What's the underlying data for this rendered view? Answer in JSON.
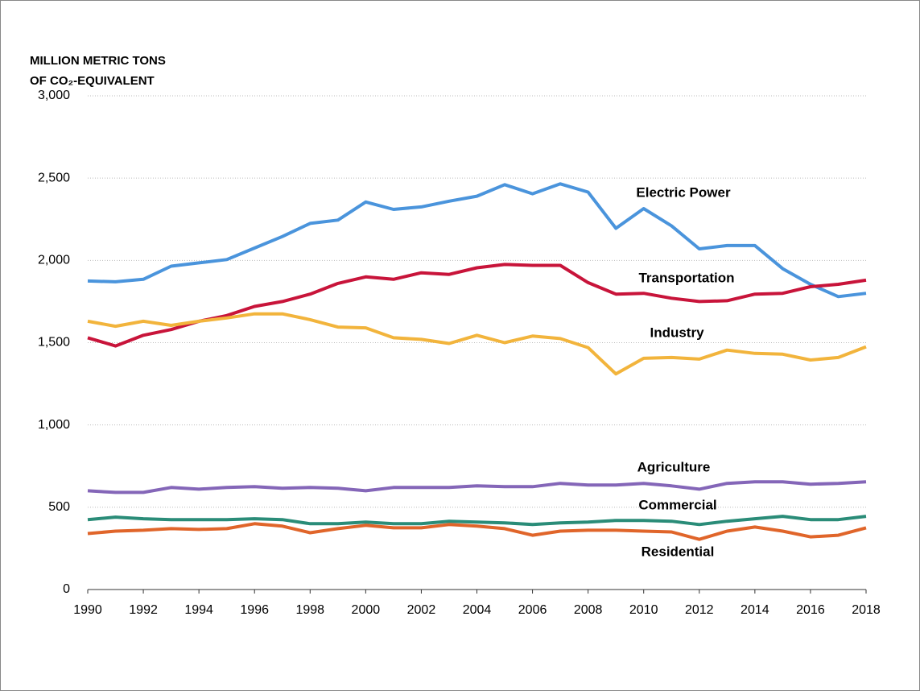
{
  "chart_data": {
    "type": "line",
    "y_label": [
      "MILLION METRIC TONS",
      "OF CO₂-EQUIVALENT"
    ],
    "x": [
      1990,
      1991,
      1992,
      1993,
      1994,
      1995,
      1996,
      1997,
      1998,
      1999,
      2000,
      2001,
      2002,
      2003,
      2004,
      2005,
      2006,
      2007,
      2008,
      2009,
      2010,
      2011,
      2012,
      2013,
      2014,
      2015,
      2016,
      2017,
      2018
    ],
    "xlim": [
      1990,
      2018
    ],
    "xticks": [
      1990,
      1992,
      1994,
      1996,
      1998,
      2000,
      2002,
      2004,
      2006,
      2008,
      2010,
      2012,
      2014,
      2016,
      2018
    ],
    "ylim": [
      0,
      3000
    ],
    "yticks": [
      0,
      500,
      {
        "value": 1000,
        "label": "1,000"
      },
      {
        "value": 1500,
        "label": "1,500"
      },
      {
        "value": 2000,
        "label": "2,000"
      },
      {
        "value": 2500,
        "label": "2,500"
      },
      {
        "value": 3000,
        "label": "3,000"
      }
    ],
    "grid": true,
    "series": [
      {
        "name": "Electric Power",
        "color": "#4a94dc",
        "values": [
          1875,
          1870,
          1885,
          1965,
          1985,
          2005,
          2075,
          2145,
          2225,
          2245,
          2355,
          2310,
          2325,
          2360,
          2390,
          2460,
          2405,
          2465,
          2415,
          2195,
          2315,
          2210,
          2070,
          2090,
          2090,
          1950,
          1855,
          1780,
          1800
        ]
      },
      {
        "name": "Transportation",
        "color": "#c8143a",
        "values": [
          1530,
          1480,
          1545,
          1580,
          1630,
          1665,
          1720,
          1750,
          1795,
          1860,
          1900,
          1885,
          1925,
          1915,
          1955,
          1975,
          1970,
          1970,
          1865,
          1795,
          1800,
          1770,
          1750,
          1755,
          1795,
          1800,
          1840,
          1855,
          1880
        ]
      },
      {
        "name": "Industry",
        "color": "#f2b43c",
        "values": [
          1630,
          1600,
          1630,
          1605,
          1630,
          1650,
          1675,
          1675,
          1640,
          1595,
          1590,
          1530,
          1520,
          1495,
          1545,
          1500,
          1540,
          1525,
          1470,
          1310,
          1405,
          1410,
          1400,
          1455,
          1435,
          1430,
          1395,
          1410,
          1475
        ]
      },
      {
        "name": "Agriculture",
        "color": "#8466b8",
        "values": [
          600,
          590,
          590,
          620,
          610,
          620,
          625,
          615,
          620,
          615,
          600,
          620,
          620,
          620,
          630,
          625,
          625,
          645,
          635,
          635,
          645,
          630,
          610,
          645,
          655,
          655,
          640,
          645,
          655
        ]
      },
      {
        "name": "Commercial",
        "color": "#2a8c78",
        "values": [
          425,
          440,
          430,
          425,
          425,
          425,
          430,
          425,
          400,
          400,
          410,
          400,
          400,
          415,
          410,
          405,
          395,
          405,
          410,
          420,
          420,
          415,
          395,
          415,
          430,
          445,
          425,
          425,
          445
        ]
      },
      {
        "name": "Residential",
        "color": "#e0652a",
        "values": [
          340,
          355,
          360,
          370,
          365,
          370,
          400,
          385,
          345,
          370,
          390,
          375,
          375,
          395,
          385,
          370,
          330,
          355,
          360,
          360,
          355,
          350,
          305,
          355,
          380,
          355,
          320,
          330,
          375
        ]
      }
    ]
  }
}
